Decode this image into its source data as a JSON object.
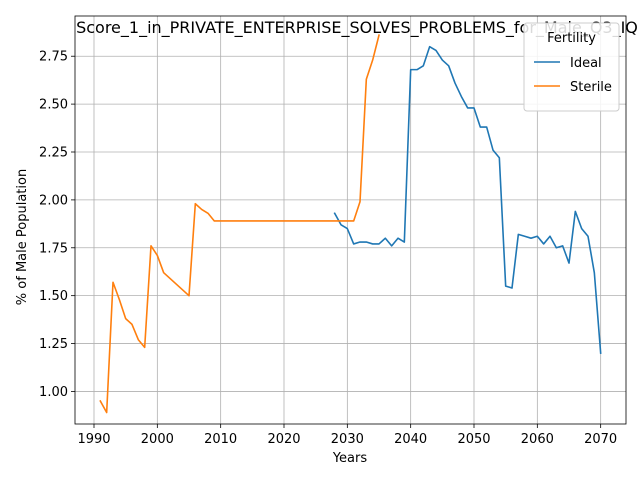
{
  "chart_data": {
    "type": "line",
    "title": "Score_1_in_PRIVATE_ENTERPRISE_SOLVES_PROBLEMS_for_Male_Q3_IQ",
    "xlabel": "Years",
    "ylabel": "% of Male Population",
    "xlim": [
      1987,
      2074
    ],
    "ylim": [
      0.83,
      2.96
    ],
    "xticks": [
      1990,
      2000,
      2010,
      2020,
      2030,
      2040,
      2050,
      2060,
      2070
    ],
    "yticks": [
      1.0,
      1.25,
      1.5,
      1.75,
      2.0,
      2.25,
      2.5,
      2.75
    ],
    "grid": true,
    "legend": {
      "title": "Fertility",
      "placement": "top-right"
    },
    "series": [
      {
        "name": "Ideal",
        "color": "#1f77b4",
        "x": [
          2028,
          2029,
          2030,
          2031,
          2032,
          2033,
          2034,
          2035,
          2036,
          2037,
          2038,
          2039,
          2040,
          2041,
          2042,
          2043,
          2044,
          2045,
          2046,
          2047,
          2048,
          2049,
          2050,
          2051,
          2052,
          2053,
          2054,
          2055,
          2056,
          2057,
          2058,
          2059,
          2060,
          2061,
          2062,
          2063,
          2064,
          2065,
          2066,
          2067,
          2068,
          2069,
          2070
        ],
        "y": [
          1.93,
          1.87,
          1.85,
          1.77,
          1.78,
          1.78,
          1.77,
          1.77,
          1.8,
          1.76,
          1.8,
          1.78,
          2.68,
          2.68,
          2.7,
          2.8,
          2.78,
          2.73,
          2.7,
          2.61,
          2.54,
          2.48,
          2.48,
          2.38,
          2.38,
          2.26,
          2.22,
          1.55,
          1.54,
          1.82,
          1.81,
          1.8,
          1.81,
          1.77,
          1.81,
          1.75,
          1.76,
          1.67,
          1.94,
          1.85,
          1.81,
          1.62,
          1.2
        ]
      },
      {
        "name": "Sterile",
        "color": "#ff7f0e",
        "x": [
          1991,
          1992,
          1993,
          1994,
          1995,
          1996,
          1997,
          1998,
          1999,
          2000,
          2001,
          2002,
          2003,
          2004,
          2005,
          2006,
          2007,
          2008,
          2009,
          2010,
          2015,
          2020,
          2025,
          2028,
          2029,
          2030,
          2031,
          2032,
          2033,
          2034,
          2035
        ],
        "y": [
          0.95,
          0.89,
          1.57,
          1.48,
          1.38,
          1.35,
          1.27,
          1.23,
          1.76,
          1.71,
          1.62,
          1.59,
          1.56,
          1.53,
          1.5,
          1.98,
          1.95,
          1.93,
          1.89,
          1.89,
          1.89,
          1.89,
          1.89,
          1.89,
          1.89,
          1.89,
          1.89,
          1.99,
          2.63,
          2.73,
          2.86
        ]
      }
    ]
  }
}
